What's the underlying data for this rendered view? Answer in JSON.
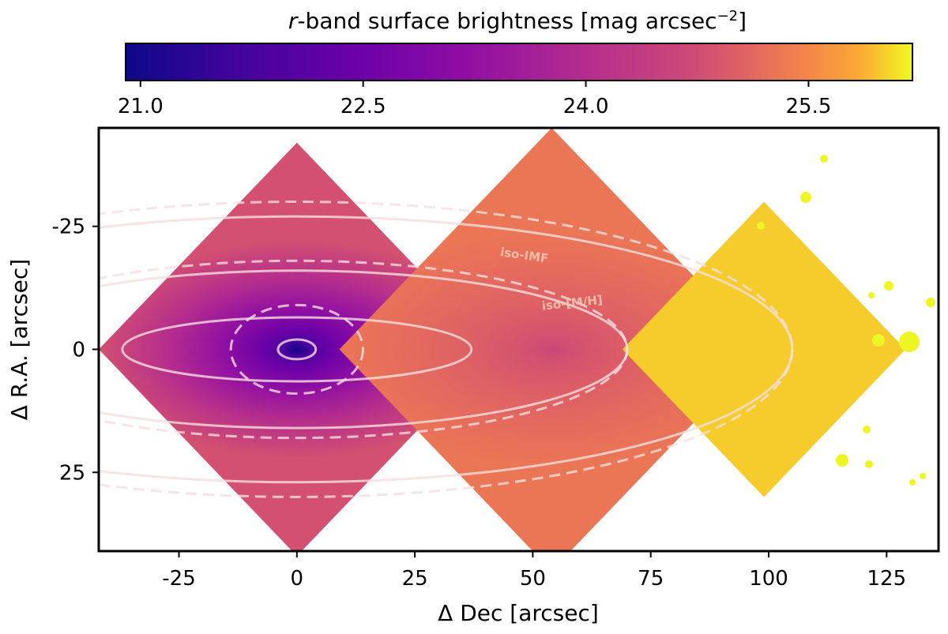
{
  "chart_data": {
    "type": "heatmap",
    "colorbar": {
      "title_prefix": "r",
      "title_rest": "-band surface brightness [mag arcsec",
      "title_sup": "−2",
      "title_close": "]",
      "range": [
        20.9,
        26.2
      ],
      "ticks": [
        "21.0",
        "22.5",
        "24.0",
        "25.5"
      ],
      "tick_values": [
        21.0,
        22.5,
        24.0,
        25.5
      ],
      "colormap": "plasma"
    },
    "xaxis": {
      "label": "Δ Dec [arcsec]",
      "range": [
        -42,
        136
      ],
      "ticks": [
        "-25",
        "0",
        "25",
        "50",
        "75",
        "100",
        "125"
      ],
      "tick_values": [
        -25,
        0,
        25,
        50,
        75,
        100,
        125
      ]
    },
    "yaxis": {
      "label": "Δ R.A. [arcsec]",
      "range": [
        -45,
        41
      ],
      "inverted": true,
      "ticks": [
        "-25",
        "0",
        "25"
      ],
      "tick_values": [
        -25,
        0,
        25
      ]
    },
    "pointings": [
      {
        "center": [
          0,
          0
        ],
        "half_diagonal": 42,
        "sb_center": 21.0,
        "sb_edge": 24.8
      },
      {
        "center": [
          54,
          0
        ],
        "half_diagonal": 45,
        "sb_center": 24.6,
        "sb_edge": 25.3
      },
      {
        "center": [
          99,
          0
        ],
        "half_diagonal": 30,
        "sb_center": 26.0,
        "sb_edge": 26.0
      }
    ],
    "contours": [
      {
        "name": "iso-[M/H]",
        "style": "solid",
        "ellipses": [
          [
            0,
            0,
            4,
            2
          ],
          [
            0,
            0,
            37,
            6.5
          ],
          [
            0,
            0,
            70,
            16
          ],
          [
            0,
            0,
            105,
            27
          ]
        ]
      },
      {
        "name": "iso-IMF",
        "style": "dashed",
        "ellipses": [
          [
            0,
            0,
            14,
            9
          ],
          [
            0,
            0,
            70,
            18
          ],
          [
            0,
            0,
            105,
            30
          ]
        ]
      }
    ],
    "annotations": [
      {
        "text": "iso-IMF",
        "x": 43,
        "y": -19
      },
      {
        "text": "iso-[M/H]",
        "x": 52,
        "y": -8
      }
    ]
  }
}
